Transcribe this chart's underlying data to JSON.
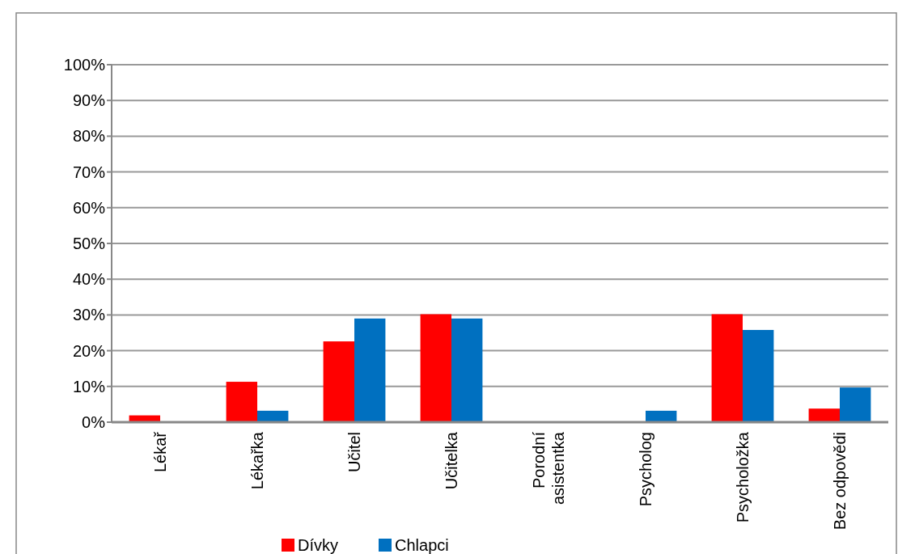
{
  "chart_data": {
    "type": "bar",
    "categories": [
      "Lékař",
      "Lékařka",
      "Učitel",
      "Učitelka",
      "Porodní asistentka",
      "Psycholog",
      "Psycholožka",
      "Bez odpovědi"
    ],
    "series": [
      {
        "name": "Dívky",
        "color": "#ff0000",
        "values": [
          1.9,
          11.3,
          22.6,
          30.2,
          0,
          0,
          30.2,
          3.8
        ]
      },
      {
        "name": "Chlapci",
        "color": "#0070c0",
        "values": [
          0,
          3.2,
          29,
          29,
          0,
          3.2,
          25.8,
          9.7
        ]
      }
    ],
    "ylim": [
      0,
      100
    ],
    "yticks": [
      {
        "value": 0,
        "label": "0%"
      },
      {
        "value": 10,
        "label": "10%"
      },
      {
        "value": 20,
        "label": "20%"
      },
      {
        "value": 30,
        "label": "30%"
      },
      {
        "value": 40,
        "label": "40%"
      },
      {
        "value": 50,
        "label": "50%"
      },
      {
        "value": 60,
        "label": "60%"
      },
      {
        "value": 70,
        "label": "70%"
      },
      {
        "value": 80,
        "label": "80%"
      },
      {
        "value": 90,
        "label": "90%"
      },
      {
        "value": 100,
        "label": "100%"
      }
    ],
    "grid": "y",
    "legend": "bottom"
  }
}
